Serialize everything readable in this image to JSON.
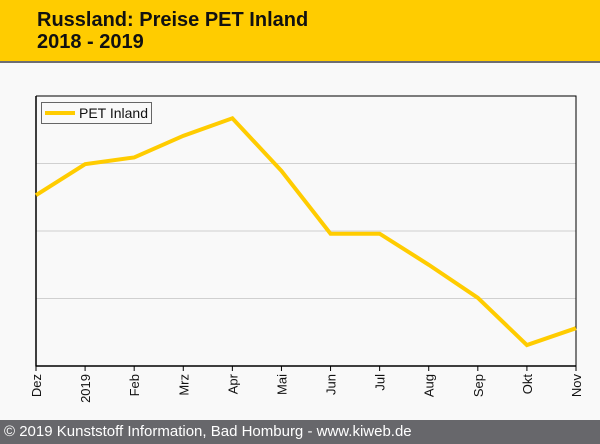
{
  "header": {
    "title_line1": "Russland: Preise PET Inland",
    "title_line2": "2018 - 2019"
  },
  "footer": {
    "text": "© 2019 Kunststoff Information, Bad Homburg - www.kiweb.de"
  },
  "colors": {
    "accent": "#ffcc00",
    "footer_bg": "#67676b",
    "grid": "#d0d0d0"
  },
  "chart_data": {
    "type": "line",
    "title": "Russland: Preise PET Inland 2018 - 2019",
    "xlabel": "",
    "ylabel": "",
    "categories": [
      "Dez",
      "2019",
      "Feb",
      "Mrz",
      "Apr",
      "Mai",
      "Jun",
      "Jul",
      "Aug",
      "Sep",
      "Okt",
      "Nov"
    ],
    "series": [
      {
        "name": "PET Inland",
        "color": "#ffcc00",
        "values": [
          2.53,
          2.99,
          3.09,
          3.41,
          3.67,
          2.89,
          1.96,
          1.96,
          1.5,
          1.01,
          0.31,
          0.56
        ]
      }
    ],
    "ylim": [
      0,
      4
    ],
    "y_gridlines": [
      1,
      2,
      3
    ],
    "y_tick_labels_shown": false,
    "grid": true,
    "legend_position": "top-left"
  }
}
